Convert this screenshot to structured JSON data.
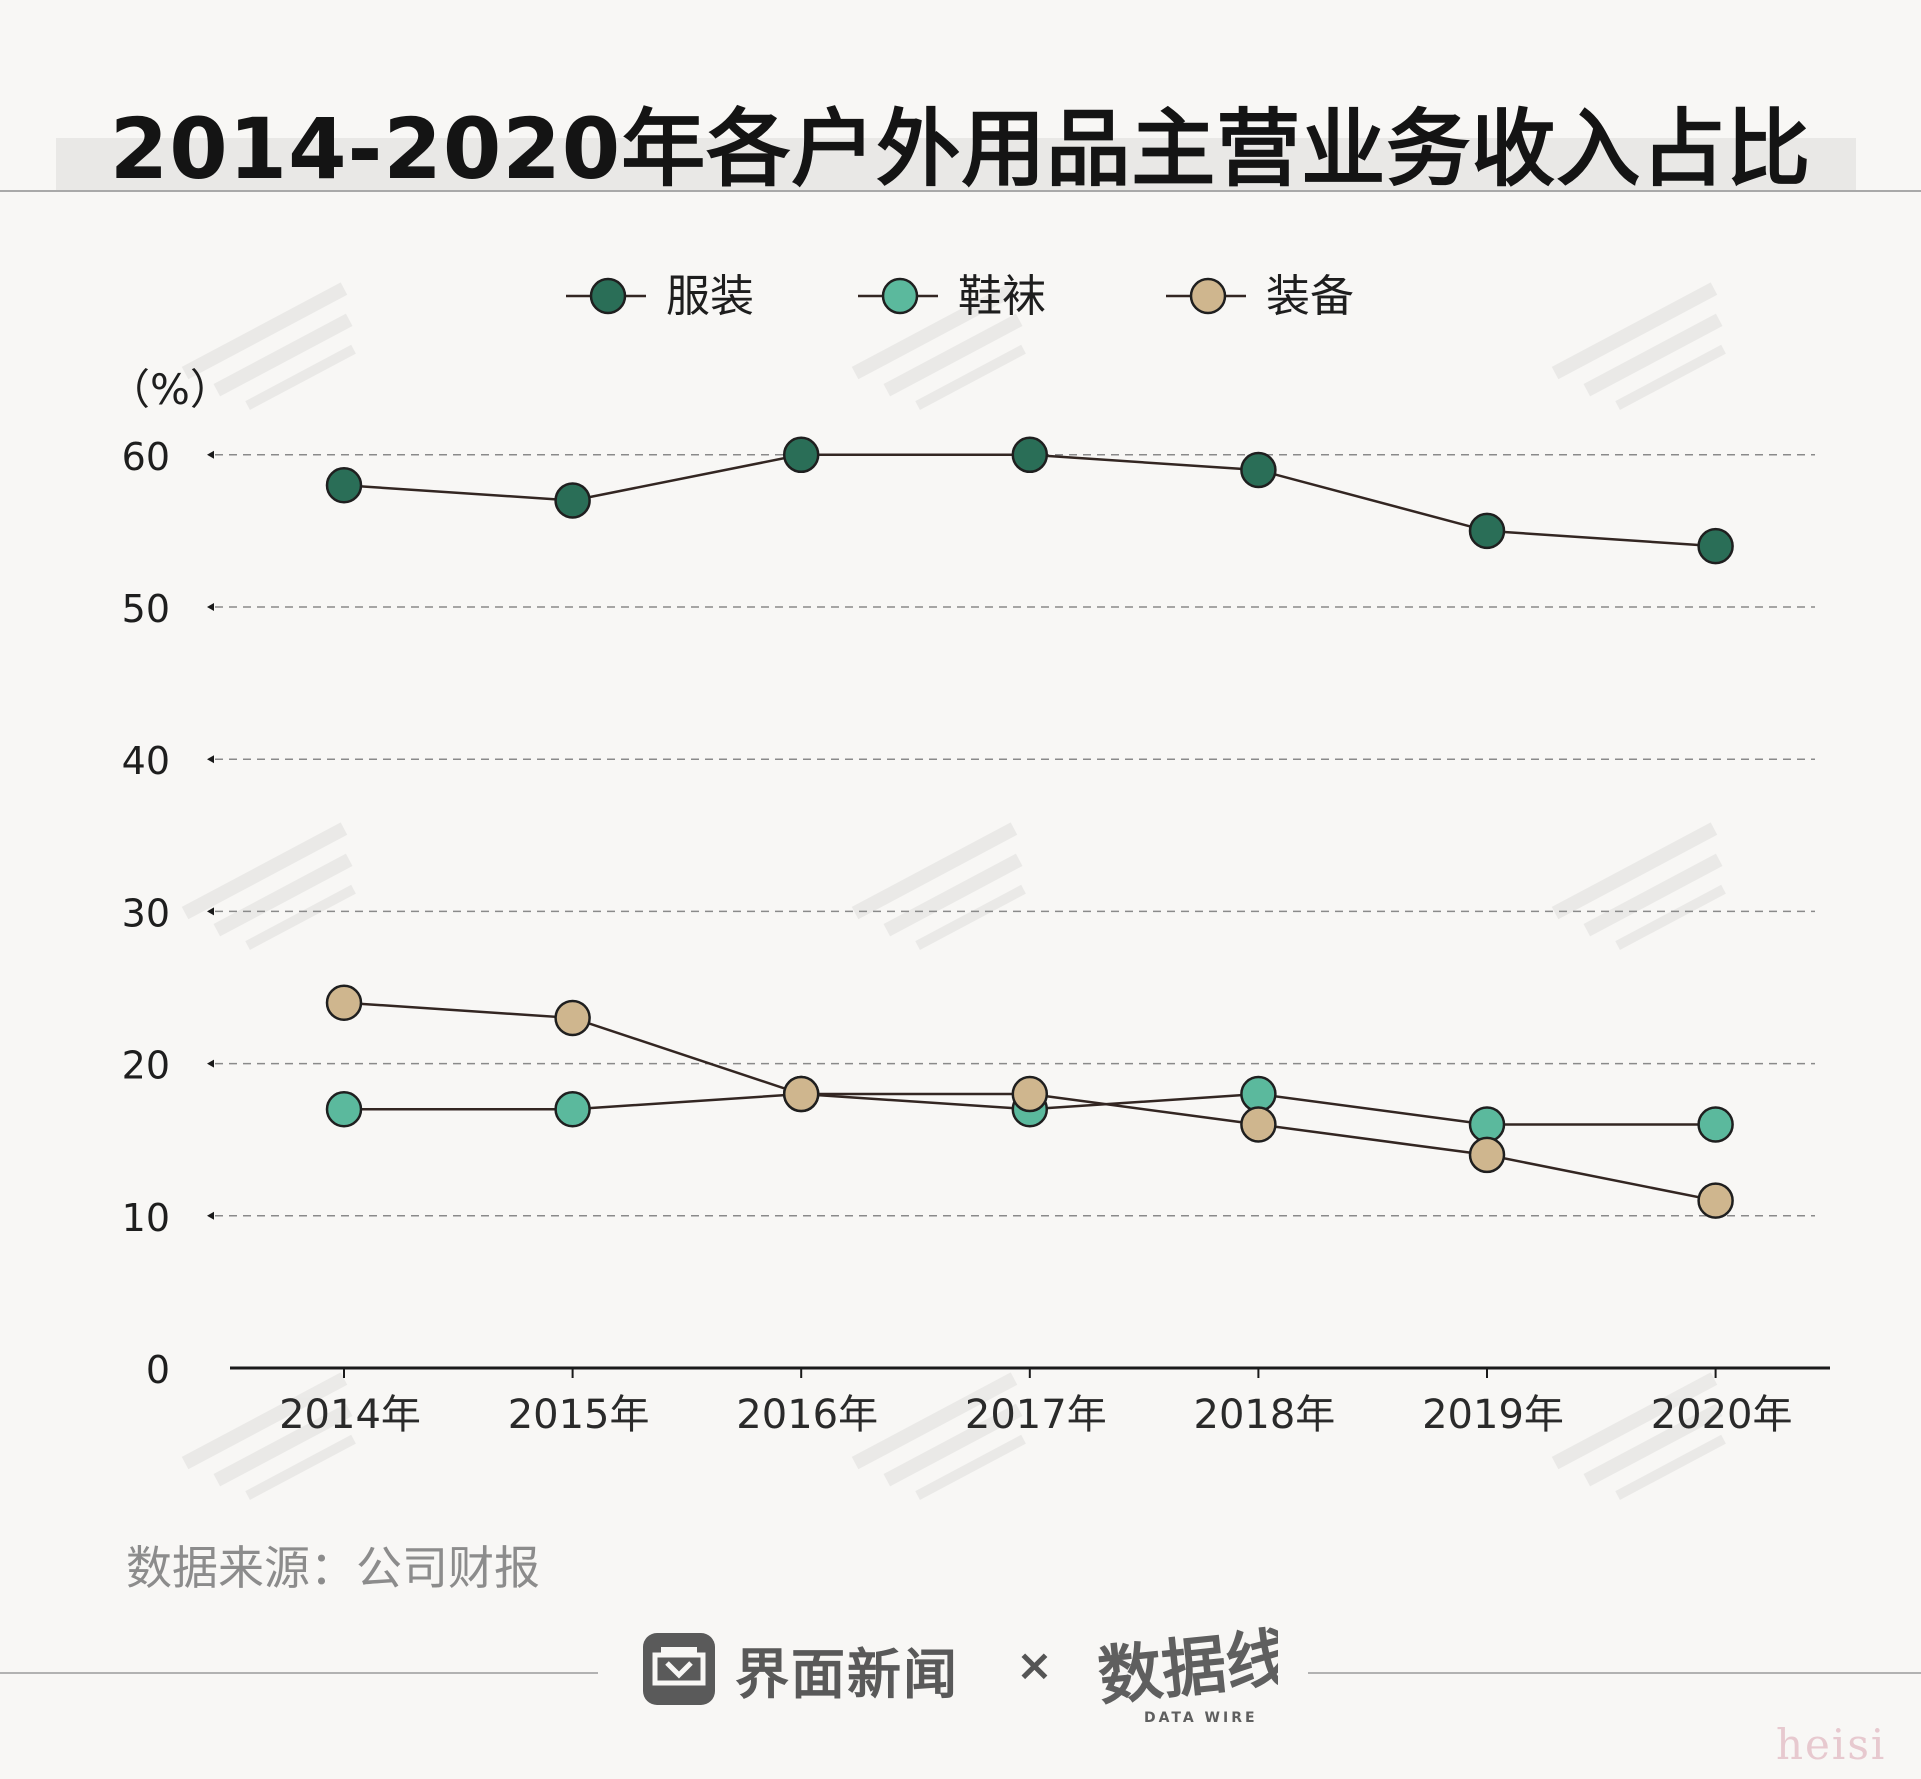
{
  "title": "2014-2020年各户外用品主营业务收入占比",
  "source": "数据来源：公司财报",
  "footer": {
    "brand": "界面新闻",
    "separator": "×",
    "logo_text": "数据线",
    "logo_subtext": "DATA WIRE",
    "corner_mark": "heisi"
  },
  "colors": {
    "clothing": "#2a6e57",
    "shoes": "#5bb99d",
    "equipment": "#cfb68e",
    "line": "#332622",
    "grid": "#8a8a8a",
    "axis": "#1a1a1a"
  },
  "chart_data": {
    "type": "line",
    "title": "2014-2020年各户外用品主营业务收入占比",
    "xlabel": "",
    "ylabel": "（%）",
    "categories": [
      "2014年",
      "2015年",
      "2016年",
      "2017年",
      "2018年",
      "2019年",
      "2020年"
    ],
    "series": [
      {
        "name": "服装",
        "color": "#2a6e57",
        "values": [
          58,
          57,
          60,
          60,
          59,
          55,
          54
        ]
      },
      {
        "name": "鞋袜",
        "color": "#5bb99d",
        "values": [
          17,
          17,
          18,
          17,
          18,
          16,
          16
        ]
      },
      {
        "name": "装备",
        "color": "#cfb68e",
        "values": [
          24,
          23,
          18,
          18,
          16,
          14,
          11
        ]
      }
    ],
    "yticks": [
      0,
      10,
      20,
      30,
      40,
      50,
      60
    ],
    "ylim": [
      0,
      60
    ],
    "grid": true,
    "legend": "top-center"
  }
}
